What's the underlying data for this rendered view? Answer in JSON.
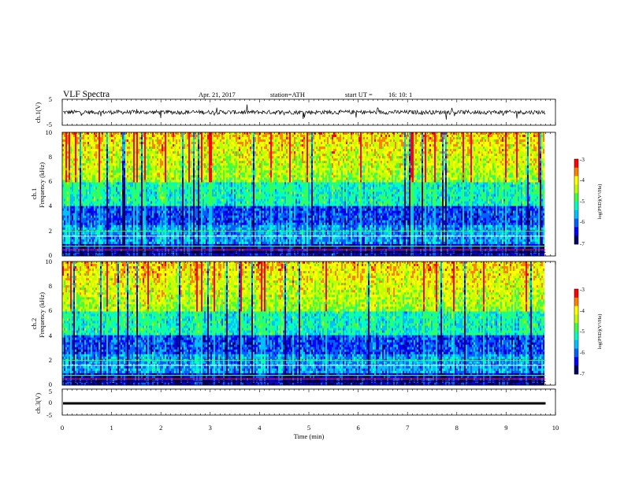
{
  "header": {
    "title": "VLF  Spectra",
    "date": "Apr. 21, 2017",
    "station": "station=ATH",
    "start_label": "start  UT  =",
    "start_time": "16: 10: 1"
  },
  "chart_data": [
    {
      "type": "line",
      "panel": "ch1-waveform",
      "ylabel": "ch.1(V)",
      "ylim": [
        -5,
        5
      ],
      "yticks": [
        "5",
        "-5"
      ],
      "xlim": [
        0,
        10
      ],
      "series_color": "#000000",
      "data_extent_min": 9.8,
      "description_level": 0
    },
    {
      "type": "heatmap",
      "panel": "ch1-spectrogram",
      "ylabel_top": "ch.1",
      "ylabel": "Frequency  (kHz)",
      "ylim": [
        0,
        10
      ],
      "yticks": [
        "0",
        "2",
        "4",
        "6",
        "8",
        "10"
      ],
      "xlim": [
        0,
        10
      ],
      "data_extent_min": 9.8,
      "colorbar": {
        "label": "log(PSD)(V²/Hz)",
        "range": [
          -7,
          -3
        ],
        "ticks": [
          "-3",
          "-4",
          "-5",
          "-6",
          "-7"
        ]
      }
    },
    {
      "type": "heatmap",
      "panel": "ch2-spectrogram",
      "ylabel_top": "ch.2",
      "ylabel": "Frequency  (kHz)",
      "ylim": [
        0,
        10
      ],
      "yticks": [
        "0",
        "2",
        "4",
        "6",
        "8",
        "10"
      ],
      "xlim": [
        0,
        10
      ],
      "data_extent_min": 9.8,
      "colorbar": {
        "label": "log(PSD)(V²/Hz)",
        "range": [
          -7,
          -3
        ],
        "ticks": [
          "-3",
          "-4",
          "-5",
          "-6",
          "-7"
        ]
      }
    },
    {
      "type": "line",
      "panel": "ch3-waveform",
      "ylabel": "ch.3(V)",
      "ylim": [
        -5,
        5
      ],
      "yticks": [
        "5",
        "0",
        "-5"
      ],
      "xlim": [
        0,
        10
      ],
      "data_extent_min": 9.8,
      "approx_level": -0.5,
      "xlabel": "Time  (min)",
      "xticks": [
        "0",
        "1",
        "2",
        "3",
        "4",
        "5",
        "6",
        "7",
        "8",
        "9",
        "10"
      ]
    }
  ],
  "colors": {
    "colormap": [
      "#000060",
      "#0000ff",
      "#0060ff",
      "#00c0ff",
      "#00ffc0",
      "#40ff40",
      "#c0ff00",
      "#ffff00",
      "#ff8000",
      "#ff0000",
      "#ffffff"
    ]
  }
}
